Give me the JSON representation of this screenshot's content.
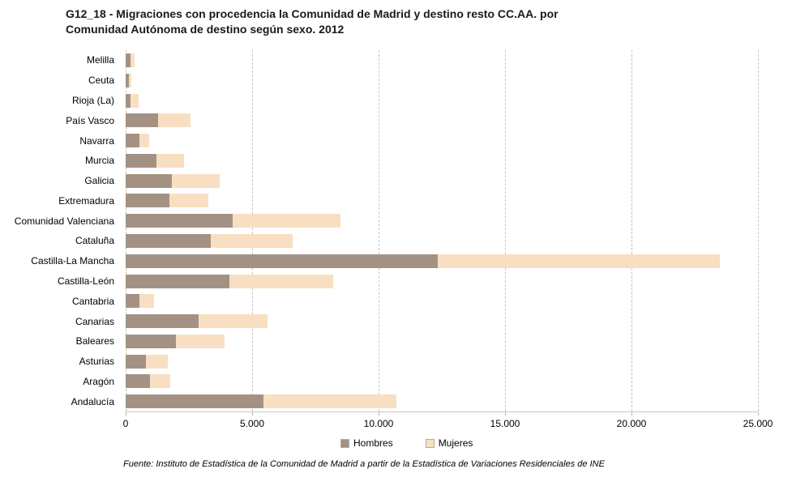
{
  "title": {
    "line1": "G12_18 - Migraciones con procedencia la Comunidad de Madrid y destino resto CC.AA. por",
    "line2": "Comunidad Autónoma de destino según sexo. 2012"
  },
  "footer": "Fuente: Instituto de Estadística de la Comunidad de Madrid a partir de la Estadística de Variaciones Residenciales de INE",
  "colors": {
    "hombres": "#a39284",
    "mujeres": "#f8dfc2",
    "gridline": "#c4c4c4",
    "axis": "#ccc9c2",
    "text": "#1a1a1a"
  },
  "chart_data": {
    "type": "bar",
    "orientation": "horizontal",
    "stacked": true,
    "grid": "dashed-vertical",
    "legend_position": "bottom",
    "xlim": [
      0,
      25000
    ],
    "x_ticks": [
      {
        "value": 0,
        "label": "0"
      },
      {
        "value": 5000,
        "label": "5.000"
      },
      {
        "value": 10000,
        "label": "10.000"
      },
      {
        "value": 15000,
        "label": "15.000"
      },
      {
        "value": 20000,
        "label": "20.000"
      },
      {
        "value": 25000,
        "label": "25.000"
      }
    ],
    "categories": [
      "Melilla",
      "Ceuta",
      "Rioja (La)",
      "País Vasco",
      "Navarra",
      "Murcia",
      "Galicia",
      "Extremadura",
      "Comunidad Valenciana",
      "Cataluña",
      "Castilla-La Mancha",
      "Castilla-León",
      "Cantabria",
      "Canarias",
      "Baleares",
      "Asturias",
      "Aragón",
      "Andalucía"
    ],
    "series": [
      {
        "name": "Hombres",
        "color_key": "hombres",
        "values": [
          180,
          120,
          190,
          1280,
          540,
          1220,
          1830,
          1730,
          4230,
          3370,
          12350,
          4100,
          550,
          2900,
          2000,
          800,
          950,
          5450
        ]
      },
      {
        "name": "Mujeres",
        "color_key": "mujeres",
        "values": [
          180,
          100,
          320,
          1280,
          400,
          1090,
          1890,
          1540,
          4260,
          3240,
          11150,
          4100,
          580,
          2700,
          1900,
          870,
          800,
          5250
        ]
      }
    ]
  }
}
